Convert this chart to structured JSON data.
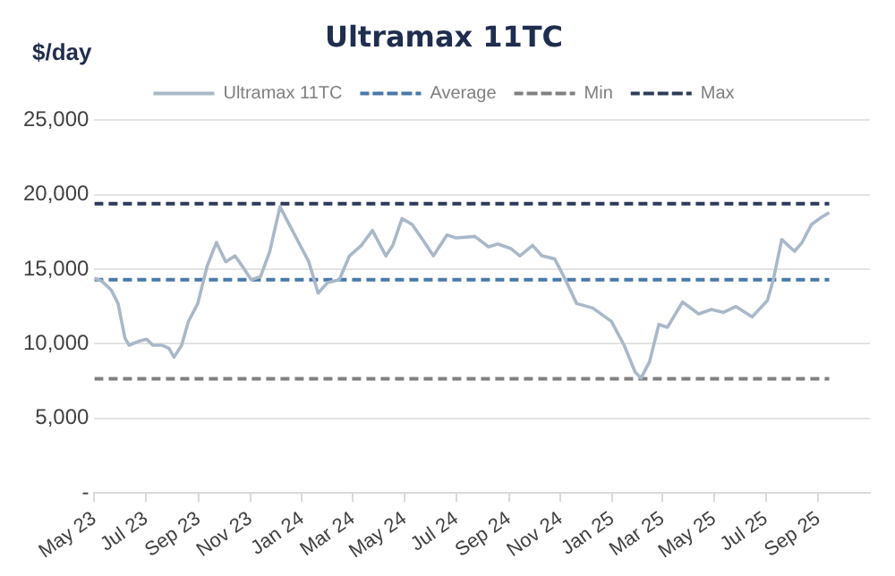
{
  "chart_data": {
    "type": "line",
    "title": "Ultramax 11TC",
    "ylabel": "$/day",
    "x": [
      "2023-05-01",
      "2023-05-10",
      "2023-05-21",
      "2023-05-29",
      "2023-06-06",
      "2023-06-11",
      "2023-06-24",
      "2023-07-02",
      "2023-07-09",
      "2023-07-20",
      "2023-07-28",
      "2023-08-03",
      "2023-08-12",
      "2023-08-20",
      "2023-08-31",
      "2023-09-11",
      "2023-09-22",
      "2023-10-03",
      "2023-10-14",
      "2023-10-25",
      "2023-11-02",
      "2023-11-13",
      "2023-11-24",
      "2023-12-06",
      "2023-12-17",
      "2023-12-28",
      "2024-01-09",
      "2024-01-20",
      "2024-01-31",
      "2024-02-14",
      "2024-02-26",
      "2024-03-11",
      "2024-03-24",
      "2024-04-09",
      "2024-04-17",
      "2024-04-28",
      "2024-05-10",
      "2024-05-21",
      "2024-06-04",
      "2024-06-20",
      "2024-07-01",
      "2024-07-23",
      "2024-08-08",
      "2024-08-19",
      "2024-09-03",
      "2024-09-14",
      "2024-09-29",
      "2024-10-10",
      "2024-10-25",
      "2024-11-05",
      "2024-11-20",
      "2024-12-09",
      "2024-12-31",
      "2025-01-15",
      "2025-01-28",
      "2025-02-04",
      "2025-02-14",
      "2025-02-25",
      "2025-03-07",
      "2025-03-25",
      "2025-04-13",
      "2025-04-28",
      "2025-05-12",
      "2025-05-27",
      "2025-06-15",
      "2025-07-03",
      "2025-07-10",
      "2025-07-20",
      "2025-08-04",
      "2025-08-13",
      "2025-08-24",
      "2025-09-05",
      "2025-09-14"
    ],
    "series": [
      {
        "name": "Ultramax 11TC",
        "color": "#a9b8c9",
        "values": [
          14400,
          14200,
          13600,
          12700,
          10400,
          9900,
          10200,
          10300,
          9900,
          9900,
          9700,
          9100,
          9900,
          11500,
          12700,
          15200,
          16800,
          15500,
          15900,
          15000,
          14300,
          14500,
          16200,
          19200,
          18000,
          16800,
          15500,
          13400,
          14100,
          14300,
          15900,
          16600,
          17600,
          15900,
          16600,
          18400,
          18000,
          17100,
          15900,
          17300,
          17100,
          17200,
          16500,
          16700,
          16400,
          15900,
          16600,
          15900,
          15700,
          14500,
          12700,
          12400,
          11500,
          9900,
          8100,
          7700,
          8800,
          11300,
          11100,
          12800,
          12000,
          12300,
          12100,
          12500,
          11800,
          12900,
          14300,
          17000,
          16200,
          16800,
          18000,
          18500,
          18800
        ]
      }
    ],
    "ref_lines": [
      {
        "axis": "y",
        "value": 14300,
        "label": "Average",
        "color": "#4a78a8",
        "line_style": "dashed"
      },
      {
        "axis": "y",
        "value": 7650,
        "label": "Min",
        "color": "#808080",
        "line_style": "dashed"
      },
      {
        "axis": "y",
        "value": 19400,
        "label": "Max",
        "color": "#2e3a59",
        "line_style": "dashed"
      }
    ],
    "xlim": [
      "2023-05-01",
      "2025-11-01"
    ],
    "xticks": [
      {
        "value": "2023-05-01",
        "label": "May 23"
      },
      {
        "value": "2023-07-01",
        "label": "Jul 23"
      },
      {
        "value": "2023-09-01",
        "label": "Sep 23"
      },
      {
        "value": "2023-11-01",
        "label": "Nov 23"
      },
      {
        "value": "2024-01-01",
        "label": "Jan 24"
      },
      {
        "value": "2024-03-01",
        "label": "Mar 24"
      },
      {
        "value": "2024-05-01",
        "label": "May 24"
      },
      {
        "value": "2024-07-01",
        "label": "Jul 24"
      },
      {
        "value": "2024-09-01",
        "label": "Sep 24"
      },
      {
        "value": "2024-11-01",
        "label": "Nov 24"
      },
      {
        "value": "2025-01-01",
        "label": "Jan 25"
      },
      {
        "value": "2025-03-01",
        "label": "Mar 25"
      },
      {
        "value": "2025-05-01",
        "label": "May 25"
      },
      {
        "value": "2025-07-01",
        "label": "Jul 25"
      },
      {
        "value": "2025-09-01",
        "label": "Sep 25"
      }
    ],
    "ylim": [
      0,
      25000
    ],
    "yticks": [
      {
        "value": 0,
        "label": "-"
      },
      {
        "value": 5000,
        "label": "5,000"
      },
      {
        "value": 10000,
        "label": "10,000"
      },
      {
        "value": 15000,
        "label": "15,000"
      },
      {
        "value": 20000,
        "label": "20,000"
      },
      {
        "value": 25000,
        "label": "25,000"
      }
    ],
    "grid": "y",
    "legend": "top",
    "marker": "none",
    "line_style": "solid"
  }
}
